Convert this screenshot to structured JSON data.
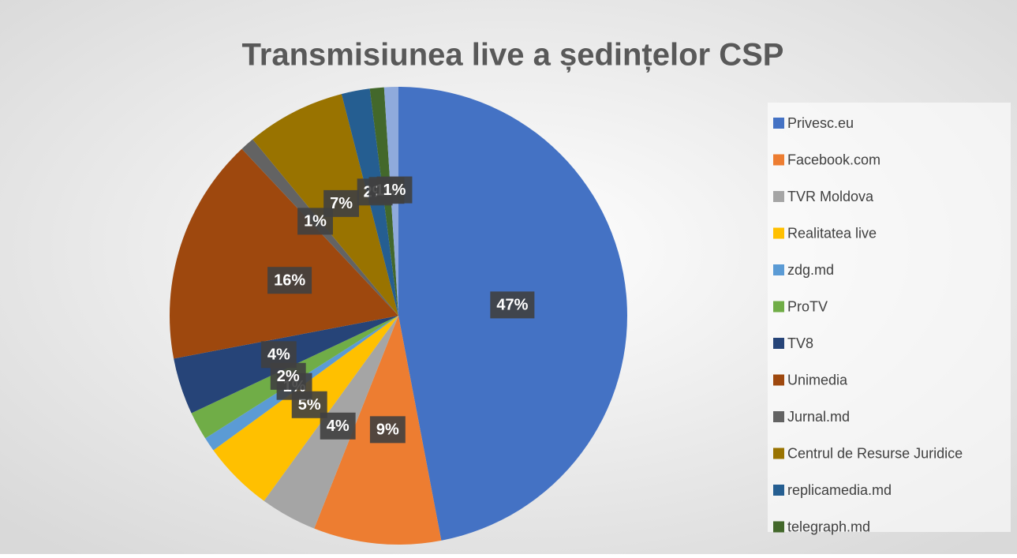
{
  "chart_data": {
    "type": "pie",
    "title": "Transmisiunea live a ședințelor CSP",
    "categories": [
      "Privesc.eu",
      "Facebook.com",
      "TVR Moldova",
      "Realitatea live",
      "zdg.md",
      "ProTV",
      "TV8",
      "Unimedia",
      "Jurnal.md",
      "Centrul de Resurse Juridice",
      "replicamedia.md",
      "telegraph.md",
      null
    ],
    "values": [
      47,
      9,
      4,
      5,
      1,
      2,
      4,
      16,
      1,
      7,
      2,
      1,
      1
    ],
    "value_labels": [
      "47%",
      "9%",
      "4%",
      "5%",
      "1%",
      "2%",
      "4%",
      "16%",
      "1%",
      "7%",
      "2%",
      "1%",
      "1%"
    ],
    "colors": [
      "#4472c4",
      "#ed7d31",
      "#a5a5a5",
      "#ffc000",
      "#5b9bd5",
      "#70ad47",
      "#264478",
      "#9e480e",
      "#636363",
      "#997300",
      "#255e91",
      "#43682b",
      "#8faadc"
    ],
    "legend": "right"
  }
}
